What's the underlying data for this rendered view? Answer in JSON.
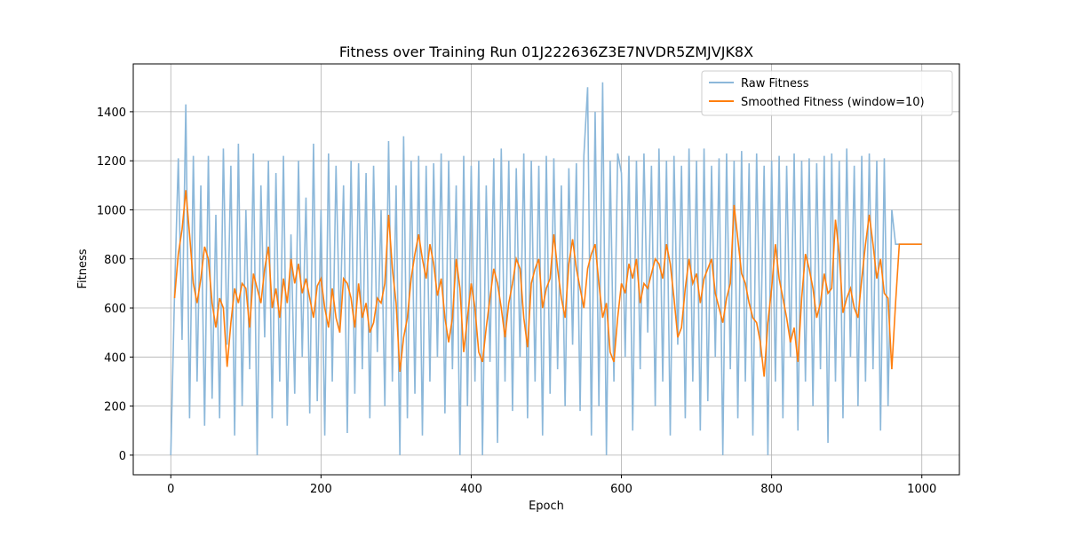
{
  "chart_data": {
    "type": "line",
    "title": "Fitness over Training Run 01J222636Z3E7NVDR5ZMJVJK8X",
    "xlabel": "Epoch",
    "ylabel": "Fitness",
    "xlim": [
      -50,
      1050
    ],
    "ylim": [
      -80,
      1595
    ],
    "xticks": [
      0,
      200,
      400,
      600,
      800,
      1000
    ],
    "yticks": [
      0,
      200,
      400,
      600,
      800,
      1000,
      1200,
      1400
    ],
    "grid": true,
    "legend": "upper right",
    "x": [
      0,
      5,
      10,
      15,
      20,
      25,
      30,
      35,
      40,
      45,
      50,
      55,
      60,
      65,
      70,
      75,
      80,
      85,
      90,
      95,
      100,
      105,
      110,
      115,
      120,
      125,
      130,
      135,
      140,
      145,
      150,
      155,
      160,
      165,
      170,
      175,
      180,
      185,
      190,
      195,
      200,
      205,
      210,
      215,
      220,
      225,
      230,
      235,
      240,
      245,
      250,
      255,
      260,
      265,
      270,
      275,
      280,
      285,
      290,
      295,
      300,
      305,
      310,
      315,
      320,
      325,
      330,
      335,
      340,
      345,
      350,
      355,
      360,
      365,
      370,
      375,
      380,
      385,
      390,
      395,
      400,
      405,
      410,
      415,
      420,
      425,
      430,
      435,
      440,
      445,
      450,
      455,
      460,
      465,
      470,
      475,
      480,
      485,
      490,
      495,
      500,
      505,
      510,
      515,
      520,
      525,
      530,
      535,
      540,
      545,
      550,
      555,
      560,
      565,
      570,
      575,
      580,
      585,
      590,
      595,
      600,
      605,
      610,
      615,
      620,
      625,
      630,
      635,
      640,
      645,
      650,
      655,
      660,
      665,
      670,
      675,
      680,
      685,
      690,
      695,
      700,
      705,
      710,
      715,
      720,
      725,
      730,
      735,
      740,
      745,
      750,
      755,
      760,
      765,
      770,
      775,
      780,
      785,
      790,
      795,
      800,
      805,
      810,
      815,
      820,
      825,
      830,
      835,
      840,
      845,
      850,
      855,
      860,
      865,
      870,
      875,
      880,
      885,
      890,
      895,
      900,
      905,
      910,
      915,
      920,
      925,
      930,
      935,
      940,
      945,
      950,
      955,
      960,
      965,
      970,
      975,
      980,
      985,
      990,
      995,
      1000
    ],
    "series": [
      {
        "name": "Raw Fitness",
        "color": "#8cb8da",
        "values": [
          0,
          660,
          1210,
          470,
          1430,
          150,
          1220,
          300,
          1100,
          120,
          1220,
          230,
          980,
          150,
          1250,
          450,
          1180,
          80,
          1270,
          200,
          1000,
          350,
          1230,
          0,
          1100,
          480,
          1200,
          150,
          1150,
          300,
          1220,
          120,
          900,
          250,
          1200,
          400,
          1050,
          170,
          1270,
          220,
          1000,
          80,
          1230,
          300,
          1180,
          500,
          1100,
          90,
          1200,
          250,
          1190,
          350,
          1150,
          150,
          1180,
          420,
          1000,
          200,
          1280,
          300,
          1100,
          0,
          1300,
          150,
          1200,
          250,
          1220,
          80,
          1180,
          300,
          1190,
          400,
          1230,
          170,
          1200,
          350,
          1100,
          0,
          1220,
          200,
          1180,
          300,
          1200,
          0,
          1100,
          380,
          1210,
          50,
          1250,
          300,
          1200,
          180,
          1170,
          400,
          1230,
          150,
          1200,
          300,
          1180,
          80,
          1220,
          250,
          1210,
          350,
          1100,
          200,
          1170,
          450,
          1190,
          180,
          1220,
          1500,
          80,
          1400,
          200,
          1520,
          0,
          1200,
          300,
          1230,
          1150,
          400,
          1220,
          100,
          1200,
          350,
          1230,
          500,
          1180,
          200,
          1250,
          300,
          1200,
          80,
          1220,
          450,
          1180,
          150,
          1250,
          300,
          1200,
          100,
          1250,
          220,
          1180,
          400,
          1210,
          0,
          1230,
          350,
          1200,
          150,
          1240,
          300,
          1190,
          80,
          1230,
          400,
          1180,
          0,
          1200,
          300,
          1220,
          150,
          1180,
          400,
          1230,
          100,
          1200,
          300,
          1210,
          200,
          1190,
          350,
          1220,
          50,
          1230,
          300,
          1200,
          150,
          1250,
          400,
          1180,
          200,
          1220,
          300,
          1230,
          350,
          1200,
          100,
          1210,
          200,
          1000,
          860,
          860,
          860,
          860,
          860,
          860,
          860,
          860
        ]
      },
      {
        "name": "Smoothed Fitness (window=10)",
        "color": "#ff7f0e",
        "values": [
          null,
          640,
          820,
          920,
          1080,
          900,
          700,
          620,
          720,
          850,
          800,
          620,
          520,
          640,
          600,
          360,
          540,
          680,
          620,
          700,
          680,
          520,
          740,
          680,
          620,
          760,
          850,
          600,
          680,
          560,
          720,
          620,
          800,
          700,
          780,
          660,
          720,
          640,
          560,
          690,
          720,
          600,
          520,
          680,
          560,
          500,
          720,
          700,
          640,
          520,
          700,
          560,
          620,
          500,
          540,
          640,
          620,
          700,
          980,
          760,
          620,
          340,
          480,
          560,
          720,
          820,
          900,
          800,
          720,
          860,
          780,
          650,
          720,
          560,
          460,
          560,
          800,
          680,
          420,
          560,
          700,
          600,
          420,
          380,
          520,
          640,
          760,
          700,
          600,
          480,
          620,
          700,
          800,
          760,
          560,
          440,
          700,
          760,
          800,
          600,
          680,
          720,
          900,
          760,
          640,
          560,
          780,
          880,
          760,
          680,
          600,
          760,
          820,
          860,
          700,
          560,
          620,
          420,
          380,
          560,
          700,
          660,
          780,
          720,
          800,
          620,
          700,
          680,
          740,
          800,
          780,
          720,
          860,
          780,
          640,
          480,
          520,
          680,
          800,
          700,
          740,
          620,
          720,
          760,
          800,
          660,
          600,
          540,
          640,
          700,
          1020,
          880,
          740,
          700,
          620,
          560,
          540,
          460,
          320,
          540,
          680,
          860,
          720,
          640,
          560,
          460,
          520,
          380,
          640,
          820,
          760,
          680,
          560,
          620,
          740,
          660,
          680,
          960,
          820,
          580,
          640,
          680,
          600,
          560,
          720,
          860,
          980,
          860,
          720,
          800,
          660,
          640,
          350,
          620,
          860,
          860,
          860,
          860,
          860,
          860,
          860
        ]
      }
    ]
  }
}
